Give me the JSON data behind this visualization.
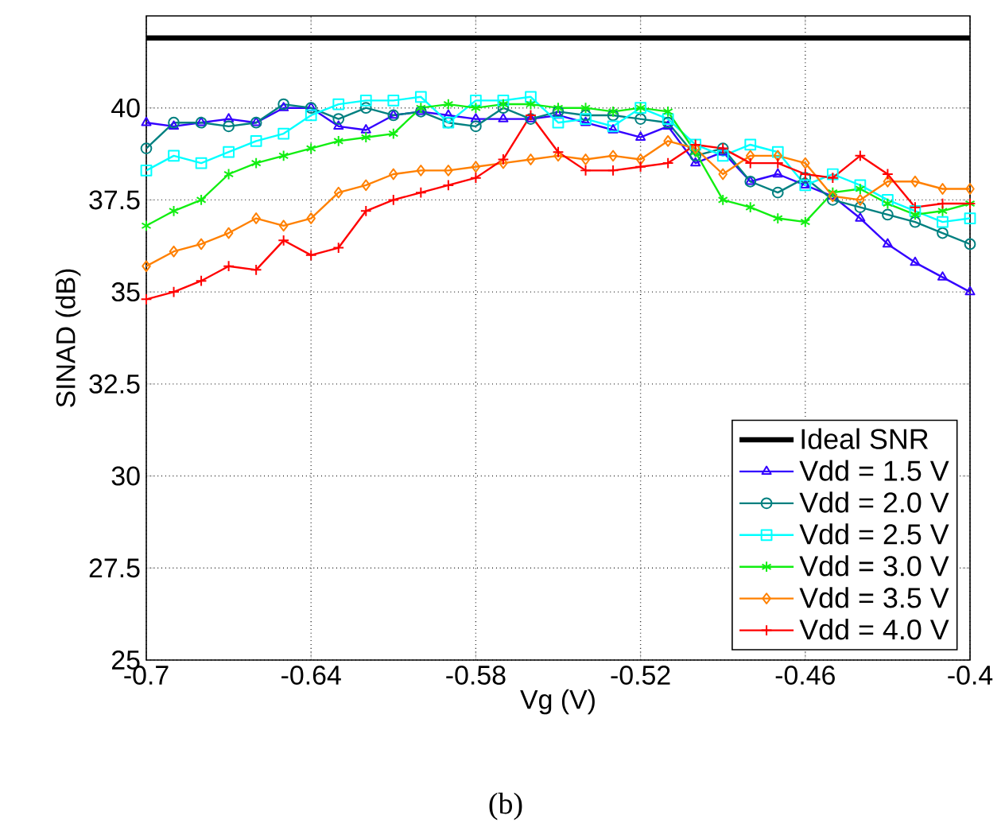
{
  "chart_data": {
    "type": "line",
    "xlabel": "Vg (V)",
    "ylabel": "SINAD (dB)",
    "x": [
      -0.7,
      -0.69,
      -0.68,
      -0.67,
      -0.66,
      -0.65,
      -0.64,
      -0.63,
      -0.62,
      -0.61,
      -0.6,
      -0.59,
      -0.58,
      -0.57,
      -0.56,
      -0.55,
      -0.54,
      -0.53,
      -0.52,
      -0.51,
      -0.5,
      -0.49,
      -0.48,
      -0.47,
      -0.46,
      -0.45,
      -0.44,
      -0.43,
      -0.42,
      -0.41,
      -0.4
    ],
    "series": [
      {
        "name": "Ideal SNR",
        "color": "#000000",
        "marker": "none",
        "x": [
          -0.7,
          -0.4
        ],
        "values": [
          41.9,
          41.9
        ]
      },
      {
        "name": "Vdd = 1.5 V",
        "color": "#3300ff",
        "marker": "triangle",
        "values": [
          39.6,
          39.5,
          39.6,
          39.7,
          39.6,
          40.0,
          40.0,
          39.5,
          39.4,
          39.8,
          39.9,
          39.8,
          39.7,
          39.7,
          39.7,
          39.8,
          39.6,
          39.4,
          39.2,
          39.5,
          38.5,
          38.8,
          38.0,
          38.2,
          37.9,
          37.6,
          37.0,
          36.3,
          35.8,
          35.4,
          35.0
        ]
      },
      {
        "name": "Vdd = 2.0 V",
        "color": "#008080",
        "marker": "circle",
        "values": [
          38.9,
          39.6,
          39.6,
          39.5,
          39.6,
          40.1,
          40.0,
          39.7,
          40.0,
          39.8,
          39.9,
          39.6,
          39.5,
          40.0,
          39.7,
          39.9,
          39.8,
          39.8,
          39.7,
          39.6,
          38.7,
          38.9,
          38.0,
          37.7,
          38.1,
          37.5,
          37.3,
          37.1,
          36.9,
          36.6,
          36.3
        ]
      },
      {
        "name": "Vdd = 2.5 V",
        "color": "#00ffff",
        "marker": "square",
        "values": [
          38.3,
          38.7,
          38.5,
          38.8,
          39.1,
          39.3,
          39.8,
          40.1,
          40.2,
          40.2,
          40.3,
          39.6,
          40.2,
          40.2,
          40.3,
          39.6,
          39.7,
          39.5,
          40.0,
          39.7,
          39.0,
          38.7,
          39.0,
          38.8,
          37.9,
          38.2,
          37.9,
          37.5,
          37.2,
          36.9,
          37.0
        ]
      },
      {
        "name": "Vdd = 3.0 V",
        "color": "#11ee11",
        "marker": "cross",
        "values": [
          36.8,
          37.2,
          37.5,
          38.2,
          38.5,
          38.7,
          38.9,
          39.1,
          39.2,
          39.3,
          40.0,
          40.1,
          40.0,
          40.1,
          40.1,
          40.0,
          40.0,
          39.9,
          40.0,
          39.9,
          38.8,
          37.5,
          37.3,
          37.0,
          36.9,
          37.7,
          37.8,
          37.4,
          37.1,
          37.2,
          37.4
        ]
      },
      {
        "name": "Vdd = 3.5 V",
        "color": "#ff8000",
        "marker": "diamond",
        "values": [
          35.7,
          36.1,
          36.3,
          36.6,
          37.0,
          36.8,
          37.0,
          37.7,
          37.9,
          38.2,
          38.3,
          38.3,
          38.4,
          38.5,
          38.6,
          38.7,
          38.6,
          38.7,
          38.6,
          39.1,
          38.9,
          38.2,
          38.7,
          38.7,
          38.5,
          37.6,
          37.5,
          38.0,
          38.0,
          37.8,
          37.8
        ]
      },
      {
        "name": "Vdd = 4.0 V",
        "color": "#ff0000",
        "marker": "cross",
        "values": [
          34.8,
          35.0,
          35.3,
          35.7,
          35.6,
          36.4,
          36.0,
          36.2,
          37.2,
          37.5,
          37.7,
          37.9,
          38.1,
          38.6,
          39.8,
          38.8,
          38.3,
          38.3,
          38.4,
          38.5,
          39.0,
          38.9,
          38.5,
          38.5,
          38.2,
          38.1,
          38.7,
          38.2,
          37.3,
          37.4,
          37.4
        ]
      }
    ],
    "xlim": [
      -0.7,
      -0.4
    ],
    "xticks": [
      -0.7,
      -0.64,
      -0.58,
      -0.52,
      -0.46,
      -0.4
    ],
    "ylim": [
      25,
      42.5
    ],
    "yticks": [
      25,
      27.5,
      30,
      32.5,
      35,
      37.5,
      40
    ],
    "grid": true,
    "legend": "bottom right",
    "annotations": [
      "(b)"
    ]
  }
}
